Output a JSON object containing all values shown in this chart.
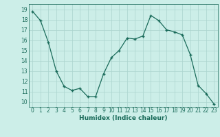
{
  "x": [
    0,
    1,
    2,
    3,
    4,
    5,
    6,
    7,
    8,
    9,
    10,
    11,
    12,
    13,
    14,
    15,
    16,
    17,
    18,
    19,
    20,
    21,
    22,
    23
  ],
  "y": [
    18.8,
    17.9,
    15.8,
    13.0,
    11.5,
    11.1,
    11.3,
    10.5,
    10.5,
    12.7,
    14.3,
    15.0,
    16.2,
    16.1,
    16.4,
    18.4,
    17.9,
    17.0,
    16.8,
    16.5,
    14.6,
    11.6,
    10.8,
    9.8
  ],
  "xlabel": "Humidex (Indice chaleur)",
  "line_color": "#1a6b5a",
  "marker": "+",
  "marker_size": 3.5,
  "linewidth": 0.9,
  "background_color": "#cceee8",
  "grid_color": "#aad4ce",
  "tick_label_color": "#1a6b5a",
  "axis_color": "#1a6b5a",
  "xlabel_color": "#1a6b5a",
  "ylim": [
    9.5,
    19.5
  ],
  "yticks": [
    10,
    11,
    12,
    13,
    14,
    15,
    16,
    17,
    18,
    19
  ],
  "xticks": [
    0,
    1,
    2,
    3,
    4,
    5,
    6,
    7,
    8,
    9,
    10,
    11,
    12,
    13,
    14,
    15,
    16,
    17,
    18,
    19,
    20,
    21,
    22,
    23
  ],
  "xlim": [
    -0.5,
    23.5
  ],
  "tick_fontsize": 5.5,
  "xlabel_fontsize": 6.5
}
